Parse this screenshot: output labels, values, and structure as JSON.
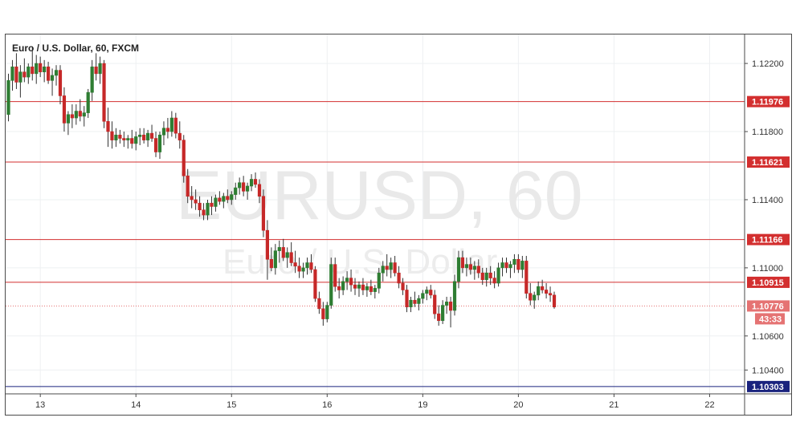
{
  "chart_data": {
    "type": "candlestick",
    "symbol": "EURUSD",
    "interval": "60",
    "title": "Euro / U.S. Dollar, 60, FXCM",
    "watermark": {
      "symbol_line": "EURUSD, 60",
      "name_line": "Euro / U.S. Dollar"
    },
    "ylim": [
      1.1026,
      1.1237
    ],
    "y_ticks": [
      {
        "value": 1.122,
        "label": "1.12200"
      },
      {
        "value": 1.118,
        "label": "1.11800"
      },
      {
        "value": 1.114,
        "label": "1.11400"
      },
      {
        "value": 1.11,
        "label": "1.11000"
      },
      {
        "value": 1.106,
        "label": "1.10600"
      },
      {
        "value": 1.104,
        "label": "1.10400"
      }
    ],
    "x_ticks": [
      {
        "index": 8,
        "label": "13"
      },
      {
        "index": 32,
        "label": "14"
      },
      {
        "index": 56,
        "label": "15"
      },
      {
        "index": 80,
        "label": "16"
      },
      {
        "index": 104,
        "label": "19"
      },
      {
        "index": 128,
        "label": "20"
      },
      {
        "index": 152,
        "label": "21"
      },
      {
        "index": 176,
        "label": "22"
      }
    ],
    "levels": [
      {
        "value": 1.11976,
        "label": "1.11976",
        "color": "#d32f2f"
      },
      {
        "value": 1.11621,
        "label": "1.11621",
        "color": "#d32f2f"
      },
      {
        "value": 1.11166,
        "label": "1.11166",
        "color": "#d32f2f"
      },
      {
        "value": 1.10915,
        "label": "1.10915",
        "color": "#d32f2f"
      },
      {
        "value": 1.10303,
        "label": "1.10303",
        "color": "#1a237e"
      }
    ],
    "last_price": {
      "value": 1.10776,
      "label": "1.10776",
      "countdown": "43:33",
      "color": "#e57373"
    },
    "colors": {
      "up": "#2e7d32",
      "down": "#c62828",
      "wick": "#333333"
    },
    "candles": [
      [
        1.119,
        1.1214,
        1.1186,
        1.121
      ],
      [
        1.121,
        1.1222,
        1.1204,
        1.1218
      ],
      [
        1.1218,
        1.1226,
        1.1205,
        1.1209
      ],
      [
        1.1209,
        1.1219,
        1.12,
        1.1215
      ],
      [
        1.1215,
        1.1223,
        1.1209,
        1.1212
      ],
      [
        1.1212,
        1.122,
        1.1208,
        1.1218
      ],
      [
        1.1218,
        1.123,
        1.121,
        1.1214
      ],
      [
        1.1214,
        1.1225,
        1.1208,
        1.122
      ],
      [
        1.122,
        1.1224,
        1.1212,
        1.1215
      ],
      [
        1.1215,
        1.1222,
        1.1209,
        1.1218
      ],
      [
        1.1218,
        1.1221,
        1.1208,
        1.121
      ],
      [
        1.121,
        1.1217,
        1.1201,
        1.1213
      ],
      [
        1.1213,
        1.1219,
        1.1207,
        1.1216
      ],
      [
        1.1216,
        1.1219,
        1.1196,
        1.1201
      ],
      [
        1.1201,
        1.1206,
        1.118,
        1.1185
      ],
      [
        1.1185,
        1.1192,
        1.1178,
        1.119
      ],
      [
        1.119,
        1.1196,
        1.1182,
        1.1188
      ],
      [
        1.1188,
        1.1196,
        1.1184,
        1.1192
      ],
      [
        1.1192,
        1.1199,
        1.1186,
        1.1189
      ],
      [
        1.1189,
        1.1195,
        1.1183,
        1.1191
      ],
      [
        1.1191,
        1.1205,
        1.1188,
        1.1203
      ],
      [
        1.1203,
        1.1222,
        1.1198,
        1.1218
      ],
      [
        1.1218,
        1.1226,
        1.121,
        1.1214
      ],
      [
        1.1214,
        1.1224,
        1.1208,
        1.122
      ],
      [
        1.122,
        1.1222,
        1.1182,
        1.1186
      ],
      [
        1.1186,
        1.1194,
        1.1171,
        1.118
      ],
      [
        1.118,
        1.1186,
        1.117,
        1.1175
      ],
      [
        1.1175,
        1.1182,
        1.1171,
        1.1178
      ],
      [
        1.1178,
        1.1181,
        1.1173,
        1.1176
      ],
      [
        1.1176,
        1.118,
        1.1171,
        1.1175
      ],
      [
        1.1175,
        1.1178,
        1.117,
        1.1176
      ],
      [
        1.1176,
        1.1181,
        1.117,
        1.1173
      ],
      [
        1.1173,
        1.118,
        1.1169,
        1.1177
      ],
      [
        1.1177,
        1.1182,
        1.1172,
        1.1178
      ],
      [
        1.1178,
        1.1182,
        1.1173,
        1.1175
      ],
      [
        1.1175,
        1.1181,
        1.1171,
        1.1179
      ],
      [
        1.1179,
        1.1184,
        1.1174,
        1.1176
      ],
      [
        1.1176,
        1.118,
        1.1165,
        1.1168
      ],
      [
        1.1168,
        1.118,
        1.1164,
        1.1178
      ],
      [
        1.1178,
        1.1186,
        1.1172,
        1.1182
      ],
      [
        1.1182,
        1.1188,
        1.1176,
        1.118
      ],
      [
        1.118,
        1.1192,
        1.1177,
        1.1188
      ],
      [
        1.1188,
        1.1191,
        1.1176,
        1.1179
      ],
      [
        1.1179,
        1.1186,
        1.117,
        1.1175
      ],
      [
        1.1175,
        1.1178,
        1.115,
        1.1154
      ],
      [
        1.1154,
        1.1158,
        1.1138,
        1.1142
      ],
      [
        1.1142,
        1.1148,
        1.1135,
        1.114
      ],
      [
        1.114,
        1.1146,
        1.1134,
        1.1138
      ],
      [
        1.1138,
        1.1142,
        1.113,
        1.1134
      ],
      [
        1.1134,
        1.1138,
        1.1128,
        1.1131
      ],
      [
        1.1131,
        1.114,
        1.1128,
        1.1138
      ],
      [
        1.1138,
        1.1142,
        1.1131,
        1.1136
      ],
      [
        1.1136,
        1.1143,
        1.1133,
        1.1141
      ],
      [
        1.1141,
        1.1145,
        1.1137,
        1.1139
      ],
      [
        1.1139,
        1.1144,
        1.1135,
        1.1142
      ],
      [
        1.1142,
        1.1146,
        1.1138,
        1.114
      ],
      [
        1.114,
        1.1145,
        1.1137,
        1.1143
      ],
      [
        1.1143,
        1.115,
        1.114,
        1.1147
      ],
      [
        1.1147,
        1.1153,
        1.1143,
        1.115
      ],
      [
        1.115,
        1.1154,
        1.1142,
        1.1145
      ],
      [
        1.1145,
        1.115,
        1.114,
        1.1148
      ],
      [
        1.1148,
        1.1155,
        1.1145,
        1.1152
      ],
      [
        1.1152,
        1.1156,
        1.1147,
        1.1149
      ],
      [
        1.1149,
        1.1152,
        1.1138,
        1.1142
      ],
      [
        1.1142,
        1.1146,
        1.1118,
        1.1122
      ],
      [
        1.1122,
        1.1128,
        1.1093,
        1.1105
      ],
      [
        1.1105,
        1.1112,
        1.1098,
        1.11
      ],
      [
        1.11,
        1.1114,
        1.1096,
        1.111
      ],
      [
        1.111,
        1.1116,
        1.1103,
        1.1112
      ],
      [
        1.1112,
        1.1117,
        1.1104,
        1.1106
      ],
      [
        1.1106,
        1.1112,
        1.11,
        1.1109
      ],
      [
        1.1109,
        1.1115,
        1.1101,
        1.1103
      ],
      [
        1.1103,
        1.111,
        1.1097,
        1.1101
      ],
      [
        1.1101,
        1.1106,
        1.1094,
        1.1098
      ],
      [
        1.1098,
        1.1103,
        1.1094,
        1.11
      ],
      [
        1.11,
        1.1106,
        1.1096,
        1.1103
      ],
      [
        1.1103,
        1.1108,
        1.1097,
        1.1099
      ],
      [
        1.1099,
        1.1101,
        1.108,
        1.1082
      ],
      [
        1.1082,
        1.1086,
        1.1073,
        1.1076
      ],
      [
        1.1076,
        1.108,
        1.1066,
        1.107
      ],
      [
        1.107,
        1.108,
        1.1068,
        1.1078
      ],
      [
        1.1078,
        1.1106,
        1.1076,
        1.1102
      ],
      [
        1.1102,
        1.1106,
        1.1086,
        1.1089
      ],
      [
        1.1089,
        1.1094,
        1.1082,
        1.1087
      ],
      [
        1.1087,
        1.1095,
        1.1084,
        1.1092
      ],
      [
        1.1092,
        1.1098,
        1.1087,
        1.1094
      ],
      [
        1.1094,
        1.1099,
        1.1086,
        1.109
      ],
      [
        1.109,
        1.1094,
        1.1084,
        1.1088
      ],
      [
        1.1088,
        1.1092,
        1.1083,
        1.109
      ],
      [
        1.109,
        1.1094,
        1.1084,
        1.1087
      ],
      [
        1.1087,
        1.1091,
        1.1083,
        1.1089
      ],
      [
        1.1089,
        1.1093,
        1.1084,
        1.1086
      ],
      [
        1.1086,
        1.109,
        1.1082,
        1.1088
      ],
      [
        1.1088,
        1.11,
        1.1085,
        1.1097
      ],
      [
        1.1097,
        1.1104,
        1.1092,
        1.1101
      ],
      [
        1.1101,
        1.1108,
        1.1095,
        1.1099
      ],
      [
        1.1099,
        1.1106,
        1.1094,
        1.1103
      ],
      [
        1.1103,
        1.1107,
        1.1095,
        1.1097
      ],
      [
        1.1097,
        1.1101,
        1.1088,
        1.1091
      ],
      [
        1.1091,
        1.1094,
        1.1084,
        1.1087
      ],
      [
        1.1087,
        1.109,
        1.1074,
        1.1077
      ],
      [
        1.1077,
        1.1083,
        1.1074,
        1.1081
      ],
      [
        1.1081,
        1.1086,
        1.1077,
        1.1079
      ],
      [
        1.1079,
        1.1084,
        1.1075,
        1.1082
      ],
      [
        1.1082,
        1.1087,
        1.1079,
        1.1085
      ],
      [
        1.1085,
        1.1089,
        1.1081,
        1.1087
      ],
      [
        1.1087,
        1.109,
        1.1082,
        1.1084
      ],
      [
        1.1084,
        1.1087,
        1.107,
        1.1073
      ],
      [
        1.1073,
        1.1078,
        1.1066,
        1.1069
      ],
      [
        1.1069,
        1.1081,
        1.1067,
        1.1078
      ],
      [
        1.1078,
        1.1083,
        1.1073,
        1.108
      ],
      [
        1.108,
        1.1083,
        1.1065,
        1.1075
      ],
      [
        1.1075,
        1.1096,
        1.1072,
        1.1092
      ],
      [
        1.1092,
        1.111,
        1.1088,
        1.1106
      ],
      [
        1.1106,
        1.111,
        1.1097,
        1.11
      ],
      [
        1.11,
        1.1106,
        1.1095,
        1.1102
      ],
      [
        1.1102,
        1.1106,
        1.1096,
        1.1099
      ],
      [
        1.1099,
        1.1104,
        1.1093,
        1.1101
      ],
      [
        1.1101,
        1.1105,
        1.1094,
        1.1097
      ],
      [
        1.1097,
        1.11,
        1.109,
        1.1093
      ],
      [
        1.1093,
        1.11,
        1.1089,
        1.1097
      ],
      [
        1.1097,
        1.1101,
        1.109,
        1.1094
      ],
      [
        1.1094,
        1.1098,
        1.1088,
        1.1091
      ],
      [
        1.1091,
        1.1103,
        1.1089,
        1.11
      ],
      [
        1.11,
        1.1106,
        1.1095,
        1.1103
      ],
      [
        1.1103,
        1.1106,
        1.1097,
        1.11
      ],
      [
        1.11,
        1.1104,
        1.1094,
        1.1102
      ],
      [
        1.1102,
        1.1108,
        1.1097,
        1.1105
      ],
      [
        1.1105,
        1.1108,
        1.1097,
        1.1099
      ],
      [
        1.1099,
        1.1107,
        1.1094,
        1.1104
      ],
      [
        1.1104,
        1.1107,
        1.1082,
        1.1085
      ],
      [
        1.1085,
        1.1091,
        1.1078,
        1.1081
      ],
      [
        1.1081,
        1.1086,
        1.1076,
        1.1084
      ],
      [
        1.1084,
        1.1092,
        1.1081,
        1.1089
      ],
      [
        1.1089,
        1.1093,
        1.1085,
        1.1087
      ],
      [
        1.1087,
        1.1091,
        1.1082,
        1.1085
      ],
      [
        1.1085,
        1.1089,
        1.108,
        1.1084
      ],
      [
        1.1084,
        1.1086,
        1.1076,
        1.1077
      ]
    ]
  }
}
